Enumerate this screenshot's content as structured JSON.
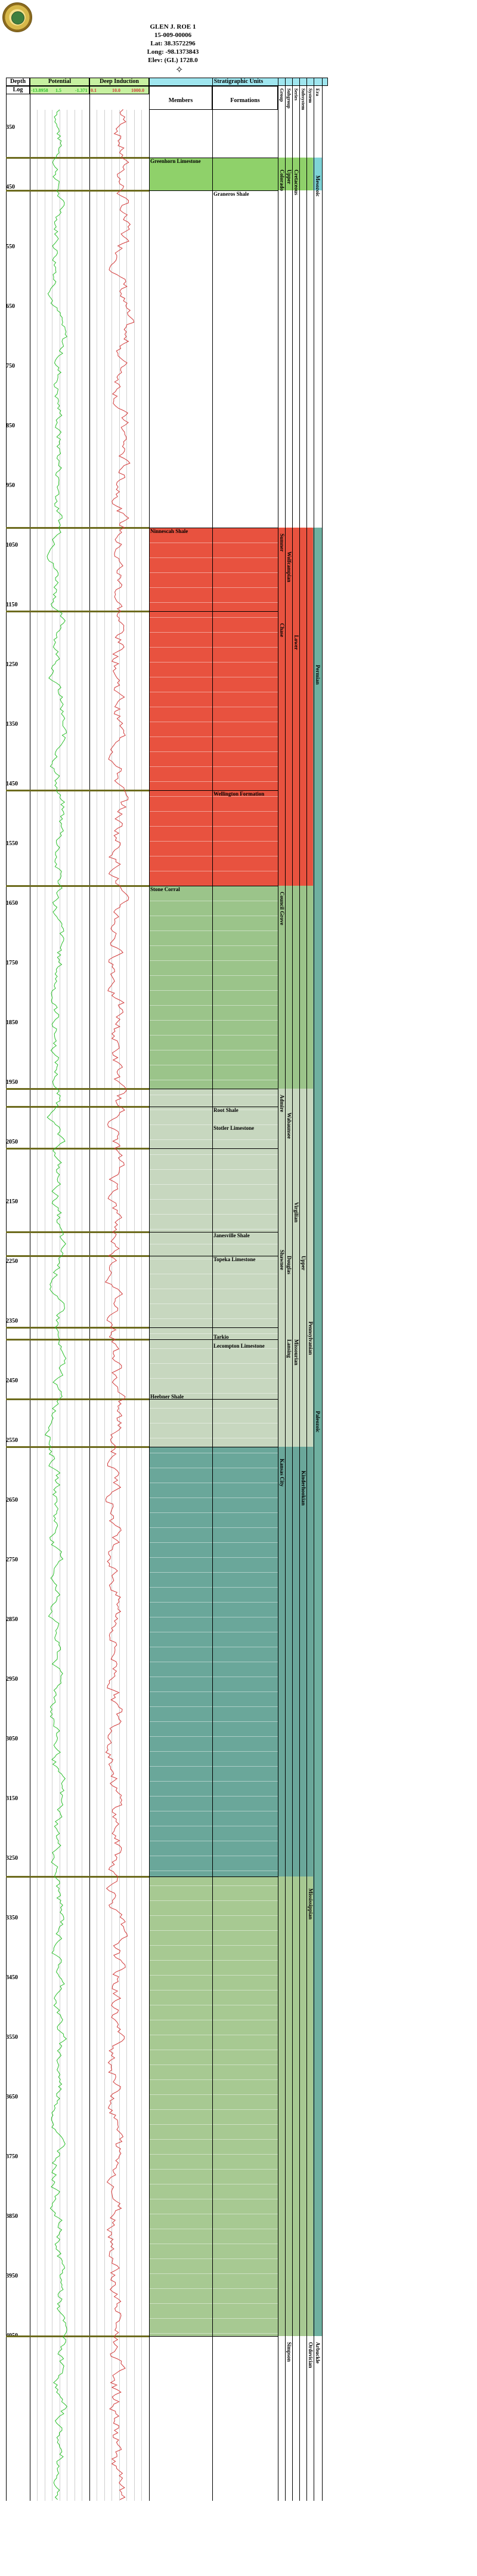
{
  "well": {
    "name": "GLEN J. ROE 1",
    "api": "15-009-00006",
    "lat": "Lat: 38.3572296",
    "long": "Long: -98.1373843",
    "elev": "Elev: (GL) 1728.0"
  },
  "seal_label": "Kansas Geological Survey seal",
  "table": {
    "depth_header": "Depth",
    "log_header": "Log",
    "sp_header": "Potential",
    "sp_scale": [
      "-13.8958",
      "1.5",
      "-1.371"
    ],
    "ind_header": "Deep Induction",
    "ind_scale": [
      "0.1",
      "10.0",
      "1000.0"
    ],
    "strat_header": "Stratigraphic Units",
    "members_header": "Members",
    "formations_header": "Formations",
    "rank_headers": [
      "Group",
      "Subgroup",
      "Series",
      "Subsystem",
      "System",
      "Era"
    ]
  },
  "depth_labels": [
    "350",
    "450",
    "550",
    "650",
    "750",
    "850",
    "950",
    "1050",
    "1150",
    "1250",
    "1350",
    "1450",
    "1550",
    "1650",
    "1750",
    "1850",
    "1950",
    "2050",
    "2150",
    "2250",
    "2350",
    "2450",
    "2550",
    "2650",
    "2750",
    "2850",
    "2950",
    "3050",
    "3150",
    "3250",
    "3350",
    "3450",
    "3550",
    "3650",
    "3750",
    "3850",
    "3950",
    "4050"
  ],
  "formations": [
    {
      "name": "Greenhorn Limestone",
      "col": "members"
    },
    {
      "name": "Graneros Shale",
      "col": "formations"
    },
    {
      "name": "Ninnescah Shale",
      "col": "members"
    },
    {
      "name": "Wellington Formation",
      "col": "formations"
    },
    {
      "name": "Stone Corral",
      "col": "members"
    },
    {
      "name": "Root Shale",
      "col": "formations"
    },
    {
      "name": "Stotler Limestone",
      "col": "formations"
    },
    {
      "name": "Janesville Shale",
      "col": "formations"
    },
    {
      "name": "Topeka Limestone",
      "col": "formations"
    },
    {
      "name": "Tarkio",
      "col": "formations"
    },
    {
      "name": "Lecompton Limestone",
      "col": "formations"
    },
    {
      "name": "Heebner Shale",
      "col": "members"
    }
  ],
  "vertical_units": [
    "Colorado",
    "Upper",
    "Cretaceous",
    "Mesozoic",
    "Sumner",
    "Chase",
    "Wolfcampian",
    "Lower",
    "Permian",
    "Council Grove",
    "Admire",
    "Wabaunsee",
    "Shawnee",
    "Virgilian",
    "Douglas",
    "Lansing",
    "Kansas City",
    "Missourian",
    "Upper",
    "Pennsylvanian",
    "Paleozoic",
    "Mississippian",
    "Kinderhookian",
    "Simpson",
    "Ordovician",
    "Arbuckle"
  ],
  "colors": {
    "cretaceous": "#8fd16a",
    "permian_red": "#e8523f",
    "penn_green": "#9bc48a",
    "penn_light": "#c7d7bf",
    "miss_teal": "#6aa79a",
    "ordovician": "#a7c992",
    "marker": "#6d6b1e",
    "sp_curve": "#2bbf2b",
    "res_curve": "#d23a3a"
  }
}
